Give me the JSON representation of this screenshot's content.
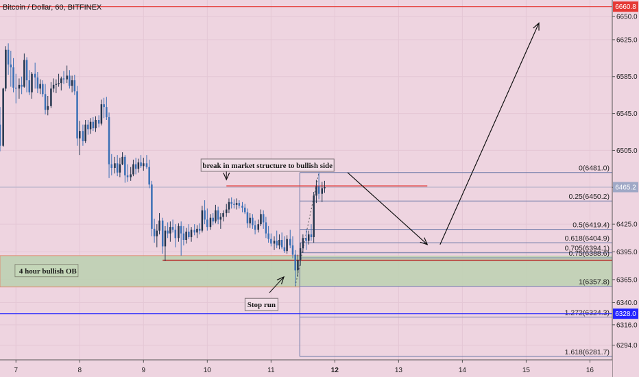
{
  "chart_data": {
    "type": "candlestick",
    "title": "Bitcoin / Dollar, 60, BITFINEX",
    "x_ticks": [
      "7",
      "8",
      "9",
      "10",
      "11",
      "12",
      "13",
      "14",
      "15",
      "16"
    ],
    "y_ticks": [
      6650.0,
      6625.0,
      6585.0,
      6545.0,
      6505.0,
      6465.0,
      6425.0,
      6395.0,
      6365.0,
      6340.0,
      6316.0,
      6294.0
    ],
    "ylim": [
      6278,
      6668
    ],
    "xlim": [
      6.75,
      16.35
    ],
    "price_markers": [
      {
        "value": 6660.8,
        "label": "6660.8",
        "color": "#e53935"
      },
      {
        "value": 6465.2,
        "label": "6465.2",
        "color": "#9fa8c6"
      },
      {
        "value": 6328.0,
        "label": "6328.0",
        "color": "#2424ff"
      }
    ],
    "fib_levels": [
      {
        "ratio": "0",
        "value": 6481.0,
        "label": "0(6481.0)"
      },
      {
        "ratio": "0.25",
        "value": 6450.2,
        "label": "0.25(6450.2)"
      },
      {
        "ratio": "0.5",
        "value": 6419.4,
        "label": "0.5(6419.4)"
      },
      {
        "ratio": "0.618",
        "value": 6404.9,
        "label": "0.618(6404.9)"
      },
      {
        "ratio": "0.705",
        "value": 6394.1,
        "label": "0.705(6394.1)"
      },
      {
        "ratio": "0.75",
        "value": 6388.6,
        "label": "0.75(6388.6)"
      },
      {
        "ratio": "1",
        "value": 6357.8,
        "label": "1(6357.8)"
      },
      {
        "ratio": "1.272",
        "value": 6324.3,
        "label": "1.272(6324.3)"
      },
      {
        "ratio": "1.618",
        "value": 6281.7,
        "label": "1.618(6281.7)"
      }
    ],
    "order_block": {
      "label": "4 hour bullish OB",
      "top": 6391,
      "bottom": 6357,
      "x_from": 6.75,
      "x_to": 11.45
    },
    "annotations": [
      {
        "text": "break in market structure to bullish side",
        "x": 10.3,
        "y": 6489
      },
      {
        "text": "Stop run",
        "x": 10.85,
        "y": 6338
      }
    ],
    "key_levels": [
      {
        "value": 6466.5,
        "x_from": 10.3,
        "x_to": 13.45,
        "color": "#e53935"
      },
      {
        "value": 6386.0,
        "x_from": 9.3,
        "x_to": 16.35,
        "color": "#b71c1c"
      }
    ],
    "projection_path": [
      {
        "x": 12.2,
        "y": 6481
      },
      {
        "x": 13.45,
        "y": 6403
      },
      {
        "x": 13.65,
        "y": 6403
      },
      {
        "x": 15.2,
        "y": 6643
      }
    ],
    "candles": [
      {
        "x": 6.75,
        "o": 6533,
        "h": 6552,
        "l": 6504,
        "c": 6510
      },
      {
        "x": 6.8,
        "o": 6510,
        "h": 6573,
        "l": 6509,
        "c": 6572
      },
      {
        "x": 6.84,
        "o": 6572,
        "h": 6618,
        "l": 6569,
        "c": 6614
      },
      {
        "x": 6.88,
        "o": 6614,
        "h": 6621,
        "l": 6587,
        "c": 6598
      },
      {
        "x": 6.92,
        "o": 6598,
        "h": 6613,
        "l": 6574,
        "c": 6595
      },
      {
        "x": 6.96,
        "o": 6595,
        "h": 6605,
        "l": 6568,
        "c": 6573
      },
      {
        "x": 7.0,
        "o": 6573,
        "h": 6588,
        "l": 6556,
        "c": 6572
      },
      {
        "x": 7.05,
        "o": 6572,
        "h": 6583,
        "l": 6561,
        "c": 6576
      },
      {
        "x": 7.09,
        "o": 6576,
        "h": 6585,
        "l": 6566,
        "c": 6574
      },
      {
        "x": 7.13,
        "o": 6574,
        "h": 6610,
        "l": 6573,
        "c": 6603
      },
      {
        "x": 7.17,
        "o": 6603,
        "h": 6606,
        "l": 6568,
        "c": 6581
      },
      {
        "x": 7.21,
        "o": 6581,
        "h": 6592,
        "l": 6565,
        "c": 6568
      },
      {
        "x": 7.25,
        "o": 6568,
        "h": 6590,
        "l": 6561,
        "c": 6588
      },
      {
        "x": 7.3,
        "o": 6588,
        "h": 6600,
        "l": 6572,
        "c": 6584
      },
      {
        "x": 7.34,
        "o": 6584,
        "h": 6590,
        "l": 6567,
        "c": 6572
      },
      {
        "x": 7.38,
        "o": 6572,
        "h": 6582,
        "l": 6566,
        "c": 6577
      },
      {
        "x": 7.42,
        "o": 6577,
        "h": 6581,
        "l": 6563,
        "c": 6566
      },
      {
        "x": 7.46,
        "o": 6566,
        "h": 6577,
        "l": 6544,
        "c": 6549
      },
      {
        "x": 7.5,
        "o": 6549,
        "h": 6564,
        "l": 6543,
        "c": 6553
      },
      {
        "x": 7.55,
        "o": 6553,
        "h": 6579,
        "l": 6551,
        "c": 6572
      },
      {
        "x": 7.59,
        "o": 6572,
        "h": 6583,
        "l": 6568,
        "c": 6576
      },
      {
        "x": 7.63,
        "o": 6576,
        "h": 6582,
        "l": 6567,
        "c": 6577
      },
      {
        "x": 7.67,
        "o": 6577,
        "h": 6588,
        "l": 6574,
        "c": 6578
      },
      {
        "x": 7.71,
        "o": 6578,
        "h": 6585,
        "l": 6570,
        "c": 6583
      },
      {
        "x": 7.75,
        "o": 6583,
        "h": 6591,
        "l": 6577,
        "c": 6582
      },
      {
        "x": 7.8,
        "o": 6582,
        "h": 6597,
        "l": 6578,
        "c": 6586
      },
      {
        "x": 7.84,
        "o": 6586,
        "h": 6592,
        "l": 6572,
        "c": 6575
      },
      {
        "x": 7.88,
        "o": 6575,
        "h": 6586,
        "l": 6568,
        "c": 6581
      },
      {
        "x": 7.92,
        "o": 6581,
        "h": 6587,
        "l": 6565,
        "c": 6569
      },
      {
        "x": 7.96,
        "o": 6569,
        "h": 6575,
        "l": 6510,
        "c": 6518
      },
      {
        "x": 8.0,
        "o": 6518,
        "h": 6537,
        "l": 6500,
        "c": 6526
      },
      {
        "x": 8.05,
        "o": 6526,
        "h": 6533,
        "l": 6510,
        "c": 6515
      },
      {
        "x": 8.09,
        "o": 6515,
        "h": 6538,
        "l": 6513,
        "c": 6533
      },
      {
        "x": 8.13,
        "o": 6533,
        "h": 6538,
        "l": 6522,
        "c": 6528
      },
      {
        "x": 8.17,
        "o": 6528,
        "h": 6540,
        "l": 6523,
        "c": 6536
      },
      {
        "x": 8.21,
        "o": 6536,
        "h": 6541,
        "l": 6526,
        "c": 6529
      },
      {
        "x": 8.25,
        "o": 6529,
        "h": 6542,
        "l": 6525,
        "c": 6538
      },
      {
        "x": 8.3,
        "o": 6538,
        "h": 6543,
        "l": 6530,
        "c": 6534
      },
      {
        "x": 8.34,
        "o": 6534,
        "h": 6560,
        "l": 6532,
        "c": 6555
      },
      {
        "x": 8.38,
        "o": 6555,
        "h": 6562,
        "l": 6540,
        "c": 6552
      },
      {
        "x": 8.42,
        "o": 6552,
        "h": 6563,
        "l": 6538,
        "c": 6541
      },
      {
        "x": 8.46,
        "o": 6541,
        "h": 6546,
        "l": 6475,
        "c": 6490
      },
      {
        "x": 8.5,
        "o": 6490,
        "h": 6501,
        "l": 6478,
        "c": 6486
      },
      {
        "x": 8.55,
        "o": 6486,
        "h": 6498,
        "l": 6480,
        "c": 6491
      },
      {
        "x": 8.59,
        "o": 6491,
        "h": 6500,
        "l": 6477,
        "c": 6481
      },
      {
        "x": 8.63,
        "o": 6481,
        "h": 6497,
        "l": 6476,
        "c": 6490
      },
      {
        "x": 8.67,
        "o": 6490,
        "h": 6503,
        "l": 6489,
        "c": 6498
      },
      {
        "x": 8.71,
        "o": 6498,
        "h": 6500,
        "l": 6470,
        "c": 6478
      },
      {
        "x": 8.75,
        "o": 6478,
        "h": 6490,
        "l": 6471,
        "c": 6476
      },
      {
        "x": 8.8,
        "o": 6476,
        "h": 6487,
        "l": 6472,
        "c": 6479
      },
      {
        "x": 8.84,
        "o": 6479,
        "h": 6495,
        "l": 6477,
        "c": 6490
      },
      {
        "x": 8.88,
        "o": 6490,
        "h": 6497,
        "l": 6479,
        "c": 6485
      },
      {
        "x": 8.92,
        "o": 6485,
        "h": 6496,
        "l": 6481,
        "c": 6492
      },
      {
        "x": 8.96,
        "o": 6492,
        "h": 6500,
        "l": 6486,
        "c": 6488
      },
      {
        "x": 9.0,
        "o": 6488,
        "h": 6497,
        "l": 6483,
        "c": 6491
      },
      {
        "x": 9.05,
        "o": 6491,
        "h": 6500,
        "l": 6485,
        "c": 6487
      },
      {
        "x": 9.09,
        "o": 6487,
        "h": 6495,
        "l": 6464,
        "c": 6468
      },
      {
        "x": 9.13,
        "o": 6468,
        "h": 6472,
        "l": 6412,
        "c": 6420
      },
      {
        "x": 9.17,
        "o": 6420,
        "h": 6431,
        "l": 6405,
        "c": 6412
      },
      {
        "x": 9.21,
        "o": 6412,
        "h": 6425,
        "l": 6400,
        "c": 6418
      },
      {
        "x": 9.25,
        "o": 6418,
        "h": 6437,
        "l": 6414,
        "c": 6429
      },
      {
        "x": 9.3,
        "o": 6429,
        "h": 6432,
        "l": 6393,
        "c": 6401
      },
      {
        "x": 9.34,
        "o": 6401,
        "h": 6423,
        "l": 6385,
        "c": 6418
      },
      {
        "x": 9.38,
        "o": 6418,
        "h": 6427,
        "l": 6410,
        "c": 6415
      },
      {
        "x": 9.42,
        "o": 6415,
        "h": 6428,
        "l": 6406,
        "c": 6422
      },
      {
        "x": 9.46,
        "o": 6422,
        "h": 6430,
        "l": 6416,
        "c": 6419
      },
      {
        "x": 9.5,
        "o": 6419,
        "h": 6425,
        "l": 6400,
        "c": 6410
      },
      {
        "x": 9.55,
        "o": 6410,
        "h": 6426,
        "l": 6406,
        "c": 6423
      },
      {
        "x": 9.59,
        "o": 6423,
        "h": 6428,
        "l": 6391,
        "c": 6415
      },
      {
        "x": 9.63,
        "o": 6415,
        "h": 6423,
        "l": 6402,
        "c": 6408
      },
      {
        "x": 9.67,
        "o": 6408,
        "h": 6421,
        "l": 6404,
        "c": 6417
      },
      {
        "x": 9.71,
        "o": 6417,
        "h": 6425,
        "l": 6409,
        "c": 6411
      },
      {
        "x": 9.75,
        "o": 6411,
        "h": 6422,
        "l": 6406,
        "c": 6419
      },
      {
        "x": 9.8,
        "o": 6419,
        "h": 6425,
        "l": 6413,
        "c": 6416
      },
      {
        "x": 9.84,
        "o": 6416,
        "h": 6424,
        "l": 6410,
        "c": 6420
      },
      {
        "x": 9.88,
        "o": 6420,
        "h": 6426,
        "l": 6414,
        "c": 6418
      },
      {
        "x": 9.92,
        "o": 6418,
        "h": 6445,
        "l": 6416,
        "c": 6440
      },
      {
        "x": 9.96,
        "o": 6440,
        "h": 6451,
        "l": 6425,
        "c": 6430
      },
      {
        "x": 10.0,
        "o": 6430,
        "h": 6442,
        "l": 6418,
        "c": 6422
      },
      {
        "x": 10.05,
        "o": 6422,
        "h": 6436,
        "l": 6419,
        "c": 6432
      },
      {
        "x": 10.09,
        "o": 6432,
        "h": 6437,
        "l": 6424,
        "c": 6428
      },
      {
        "x": 10.13,
        "o": 6428,
        "h": 6446,
        "l": 6426,
        "c": 6440
      },
      {
        "x": 10.17,
        "o": 6440,
        "h": 6444,
        "l": 6425,
        "c": 6430
      },
      {
        "x": 10.21,
        "o": 6430,
        "h": 6437,
        "l": 6420,
        "c": 6433
      },
      {
        "x": 10.25,
        "o": 6433,
        "h": 6440,
        "l": 6428,
        "c": 6437
      },
      {
        "x": 10.3,
        "o": 6437,
        "h": 6447,
        "l": 6433,
        "c": 6441
      },
      {
        "x": 10.34,
        "o": 6441,
        "h": 6453,
        "l": 6437,
        "c": 6449
      },
      {
        "x": 10.38,
        "o": 6449,
        "h": 6454,
        "l": 6442,
        "c": 6447
      },
      {
        "x": 10.42,
        "o": 6447,
        "h": 6452,
        "l": 6442,
        "c": 6446
      },
      {
        "x": 10.46,
        "o": 6446,
        "h": 6453,
        "l": 6441,
        "c": 6448
      },
      {
        "x": 10.5,
        "o": 6448,
        "h": 6451,
        "l": 6442,
        "c": 6445
      },
      {
        "x": 10.55,
        "o": 6445,
        "h": 6449,
        "l": 6438,
        "c": 6443
      },
      {
        "x": 10.59,
        "o": 6443,
        "h": 6447,
        "l": 6436,
        "c": 6438
      },
      {
        "x": 10.63,
        "o": 6438,
        "h": 6442,
        "l": 6421,
        "c": 6426
      },
      {
        "x": 10.67,
        "o": 6426,
        "h": 6437,
        "l": 6421,
        "c": 6432
      },
      {
        "x": 10.71,
        "o": 6432,
        "h": 6436,
        "l": 6420,
        "c": 6424
      },
      {
        "x": 10.75,
        "o": 6424,
        "h": 6429,
        "l": 6414,
        "c": 6419
      },
      {
        "x": 10.8,
        "o": 6419,
        "h": 6430,
        "l": 6416,
        "c": 6425
      },
      {
        "x": 10.84,
        "o": 6425,
        "h": 6441,
        "l": 6423,
        "c": 6436
      },
      {
        "x": 10.88,
        "o": 6436,
        "h": 6440,
        "l": 6420,
        "c": 6427
      },
      {
        "x": 10.92,
        "o": 6427,
        "h": 6433,
        "l": 6410,
        "c": 6415
      },
      {
        "x": 10.96,
        "o": 6415,
        "h": 6423,
        "l": 6405,
        "c": 6409
      },
      {
        "x": 11.0,
        "o": 6409,
        "h": 6415,
        "l": 6401,
        "c": 6404
      },
      {
        "x": 11.05,
        "o": 6404,
        "h": 6412,
        "l": 6397,
        "c": 6407
      },
      {
        "x": 11.09,
        "o": 6407,
        "h": 6418,
        "l": 6399,
        "c": 6402
      },
      {
        "x": 11.13,
        "o": 6402,
        "h": 6414,
        "l": 6398,
        "c": 6408
      },
      {
        "x": 11.17,
        "o": 6408,
        "h": 6416,
        "l": 6398,
        "c": 6400
      },
      {
        "x": 11.21,
        "o": 6400,
        "h": 6412,
        "l": 6394,
        "c": 6396
      },
      {
        "x": 11.25,
        "o": 6396,
        "h": 6413,
        "l": 6393,
        "c": 6409
      },
      {
        "x": 11.3,
        "o": 6409,
        "h": 6419,
        "l": 6399,
        "c": 6402
      },
      {
        "x": 11.34,
        "o": 6402,
        "h": 6412,
        "l": 6388,
        "c": 6392
      },
      {
        "x": 11.38,
        "o": 6392,
        "h": 6397,
        "l": 6357.8,
        "c": 6375
      },
      {
        "x": 11.42,
        "o": 6375,
        "h": 6392,
        "l": 6368,
        "c": 6386
      },
      {
        "x": 11.46,
        "o": 6386,
        "h": 6405,
        "l": 6380,
        "c": 6399
      },
      {
        "x": 11.5,
        "o": 6399,
        "h": 6414,
        "l": 6394,
        "c": 6410
      },
      {
        "x": 11.55,
        "o": 6410,
        "h": 6420,
        "l": 6397,
        "c": 6407
      },
      {
        "x": 11.59,
        "o": 6407,
        "h": 6418,
        "l": 6403,
        "c": 6414
      },
      {
        "x": 11.63,
        "o": 6414,
        "h": 6425,
        "l": 6407,
        "c": 6411
      },
      {
        "x": 11.67,
        "o": 6411,
        "h": 6460,
        "l": 6405,
        "c": 6456
      },
      {
        "x": 11.71,
        "o": 6456,
        "h": 6473,
        "l": 6448,
        "c": 6466
      },
      {
        "x": 11.75,
        "o": 6466,
        "h": 6481,
        "l": 6452,
        "c": 6458
      },
      {
        "x": 11.8,
        "o": 6458,
        "h": 6471,
        "l": 6449,
        "c": 6464
      },
      {
        "x": 11.84,
        "o": 6464,
        "h": 6472,
        "l": 6459,
        "c": 6465.2
      }
    ]
  }
}
